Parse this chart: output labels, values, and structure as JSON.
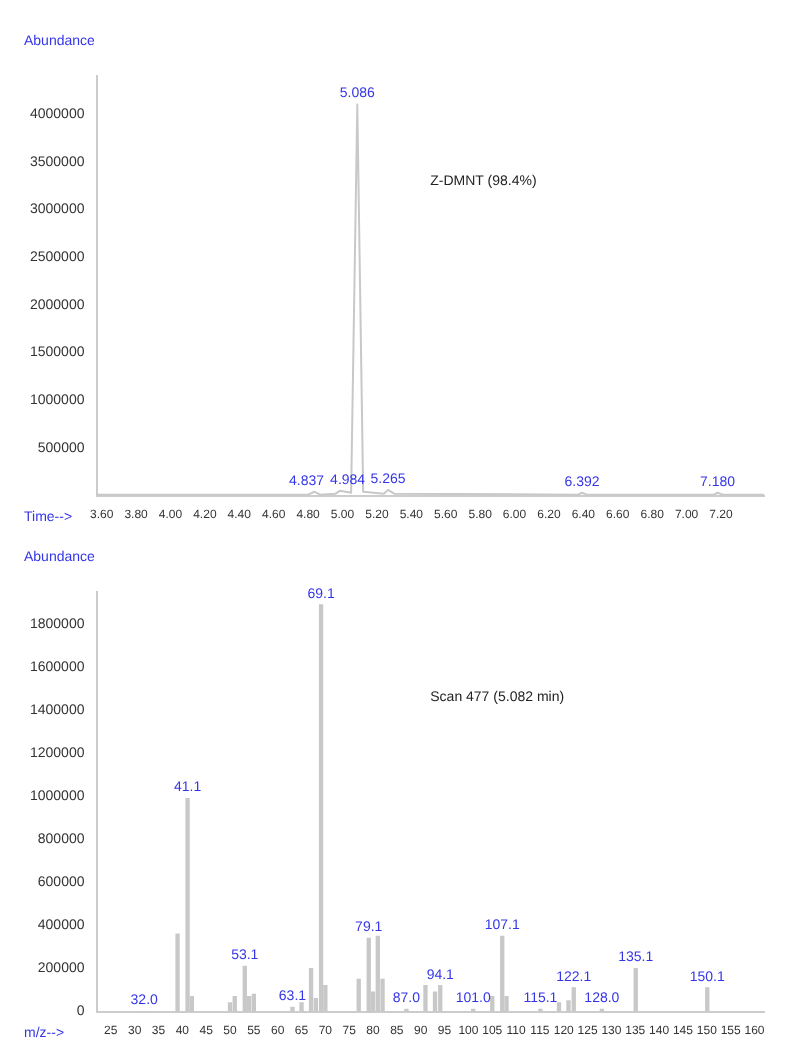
{
  "chart_data": [
    {
      "type": "line",
      "xlabel": "Time-->",
      "ylabel": "Abundance",
      "color": "#c8c8c8",
      "x": [
        3.57,
        4.8,
        4.837,
        4.87,
        4.96,
        4.984,
        5.05,
        5.086,
        5.12,
        5.24,
        5.265,
        5.3,
        6.37,
        6.392,
        6.42,
        7.16,
        7.18,
        7.21,
        7.45
      ],
      "values": [
        10000,
        10000,
        40000,
        10000,
        20000,
        50000,
        30000,
        4100000,
        40000,
        20000,
        60000,
        20000,
        10000,
        30000,
        10000,
        10000,
        30000,
        10000,
        10000
      ],
      "xlim": [
        3.57,
        7.45
      ],
      "ylim": [
        0,
        4400000
      ],
      "xticks": [
        {
          "value": 3.6,
          "label": "3.60"
        },
        {
          "value": 3.8,
          "label": "3.80"
        },
        {
          "value": 4,
          "label": "4.00"
        },
        {
          "value": 4.2,
          "label": "4.20"
        },
        {
          "value": 4.4,
          "label": "4.40"
        },
        {
          "value": 4.6,
          "label": "4.60"
        },
        {
          "value": 4.8,
          "label": "4.80"
        },
        {
          "value": 5,
          "label": "5.00"
        },
        {
          "value": 5.2,
          "label": "5.20"
        },
        {
          "value": 5.4,
          "label": "5.40"
        },
        {
          "value": 5.6,
          "label": "5.60"
        },
        {
          "value": 5.8,
          "label": "5.80"
        },
        {
          "value": 6,
          "label": "6.00"
        },
        {
          "value": 6.2,
          "label": "6.20"
        },
        {
          "value": 6.4,
          "label": "6.40"
        },
        {
          "value": 6.6,
          "label": "6.60"
        },
        {
          "value": 6.8,
          "label": "6.80"
        },
        {
          "value": 7,
          "label": "7.00"
        },
        {
          "value": 7.2,
          "label": "7.20"
        }
      ],
      "yticks": [
        500000,
        1000000,
        1500000,
        2000000,
        2500000,
        3000000,
        3500000,
        4000000
      ],
      "grid": false,
      "legend": false,
      "annotations": [
        "Z-DMNT (98.4%)",
        {
          "text": "5.086",
          "x": 5.086,
          "y": 4100000
        },
        {
          "text": "4.837",
          "x": 4.837,
          "y": 40000
        },
        {
          "text": "4.984",
          "x": 4.984,
          "y": 50000
        },
        {
          "text": "5.265",
          "x": 5.265,
          "y": 60000
        },
        {
          "text": "6.392",
          "x": 6.392,
          "y": 30000
        },
        {
          "text": "7.180",
          "x": 7.18,
          "y": 30000
        }
      ]
    },
    {
      "type": "bar",
      "xlabel": "m/z-->",
      "ylabel": "Abundance",
      "color": "#c8c8c8",
      "x": [
        32,
        39,
        41.1,
        42,
        50,
        51,
        53.1,
        54,
        55,
        63.1,
        65,
        67,
        68,
        69.1,
        70,
        77,
        79.1,
        80,
        81,
        82,
        87,
        91,
        93,
        94.1,
        101,
        105,
        107.1,
        108,
        115.1,
        119,
        121,
        122.1,
        128,
        135.1,
        150.1
      ],
      "values": [
        0,
        360000,
        990000,
        70000,
        40000,
        70000,
        210000,
        70000,
        80000,
        20000,
        40000,
        200000,
        60000,
        1890000,
        120000,
        150000,
        340000,
        90000,
        350000,
        150000,
        10000,
        120000,
        90000,
        120000,
        10000,
        70000,
        350000,
        70000,
        10000,
        40000,
        50000,
        110000,
        10000,
        200000,
        110000
      ],
      "xlim": [
        22,
        162
      ],
      "ylim": [
        0,
        1950000
      ],
      "xticks": [
        25,
        30,
        35,
        40,
        45,
        50,
        55,
        60,
        65,
        70,
        75,
        80,
        85,
        90,
        95,
        100,
        105,
        110,
        115,
        120,
        125,
        130,
        135,
        140,
        145,
        150,
        155,
        160
      ],
      "yticks": [
        0,
        200000,
        400000,
        600000,
        800000,
        1000000,
        1200000,
        1400000,
        1600000,
        1800000
      ],
      "grid": false,
      "legend": false,
      "annotations": [
        "Scan 477 (5.082 min)",
        {
          "text": "69.1",
          "x": 69.1,
          "y": 1890000
        },
        {
          "text": "41.1",
          "x": 41.1,
          "y": 990000
        },
        {
          "text": "32.0",
          "x": 32,
          "y": 0
        },
        {
          "text": "53.1",
          "x": 53.1,
          "y": 210000
        },
        {
          "text": "63.1",
          "x": 63.1,
          "y": 20000
        },
        {
          "text": "79.1",
          "x": 79.1,
          "y": 340000
        },
        {
          "text": "87.0",
          "x": 87,
          "y": 10000
        },
        {
          "text": "94.1",
          "x": 94.1,
          "y": 120000
        },
        {
          "text": "101.0",
          "x": 101,
          "y": 10000
        },
        {
          "text": "107.1",
          "x": 107.1,
          "y": 350000
        },
        {
          "text": "115.1",
          "x": 115.1,
          "y": 10000
        },
        {
          "text": "122.1",
          "x": 122.1,
          "y": 110000
        },
        {
          "text": "128.0",
          "x": 128,
          "y": 10000
        },
        {
          "text": "135.1",
          "x": 135.1,
          "y": 200000
        },
        {
          "text": "150.1",
          "x": 150.1,
          "y": 110000
        }
      ]
    }
  ]
}
